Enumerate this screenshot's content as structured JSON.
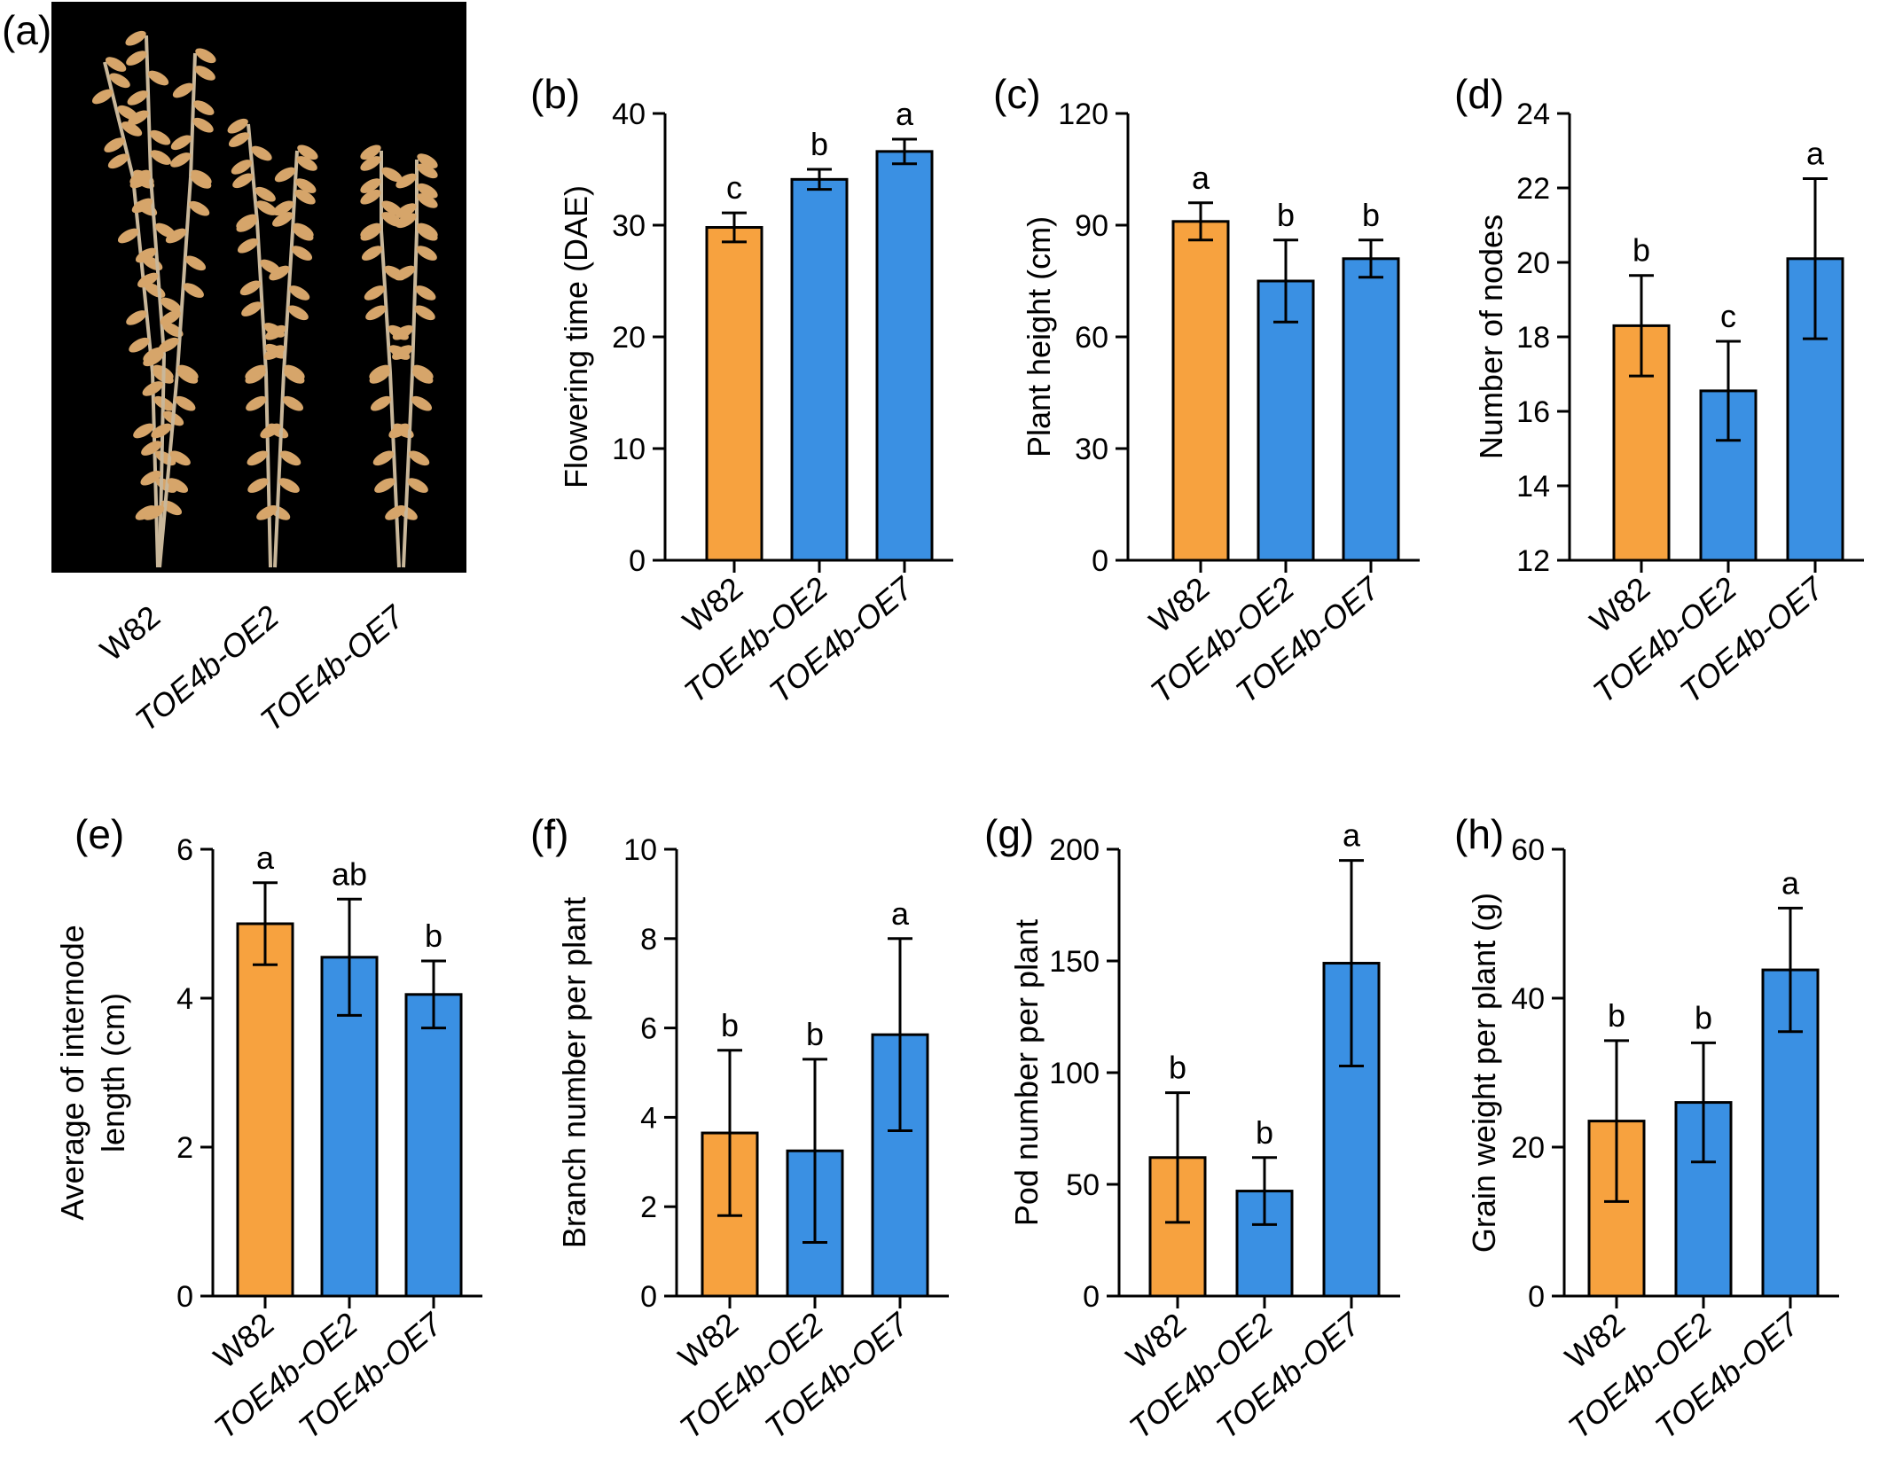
{
  "photo_panel": {
    "letter": "(a)",
    "labels": [
      "W82",
      "TOE4b-OE2",
      "TOE4b-OE7"
    ]
  },
  "colors": {
    "w82": "#f7a23f",
    "oe": "#3a90e3",
    "photo_bg": "#000000",
    "pod": "#d6a56a"
  },
  "chart_data": [
    {
      "panel": "(b)",
      "type": "bar",
      "categories": [
        "W82",
        "TOE4b-OE2",
        "TOE4b-OE7"
      ],
      "values": [
        29.8,
        34.1,
        36.6
      ],
      "errors": [
        1.3,
        0.9,
        1.1
      ],
      "significance": [
        "c",
        "b",
        "a"
      ],
      "ylabel": "Flowering time (DAE)",
      "ylim": [
        0,
        40
      ],
      "yticks": [
        0,
        10,
        20,
        30,
        40
      ]
    },
    {
      "panel": "(c)",
      "type": "bar",
      "categories": [
        "W82",
        "TOE4b-OE2",
        "TOE4b-OE7"
      ],
      "values": [
        91,
        75,
        81
      ],
      "errors": [
        5,
        11,
        5
      ],
      "significance": [
        "a",
        "b",
        "b"
      ],
      "ylabel": "Plant height (cm)",
      "ylim": [
        0,
        120
      ],
      "yticks": [
        0,
        30,
        60,
        90,
        120
      ]
    },
    {
      "panel": "(d)",
      "type": "bar",
      "categories": [
        "W82",
        "TOE4b-OE2",
        "TOE4b-OE7"
      ],
      "values": [
        18.3,
        16.55,
        20.1
      ],
      "errors": [
        1.35,
        1.33,
        2.15
      ],
      "significance": [
        "b",
        "c",
        "a"
      ],
      "ylabel": "Number of nodes",
      "ylim": [
        12,
        24
      ],
      "yticks": [
        12,
        14,
        16,
        18,
        20,
        22,
        24
      ]
    },
    {
      "panel": "(e)",
      "type": "bar",
      "categories": [
        "W82",
        "TOE4b-OE2",
        "TOE4b-OE7"
      ],
      "values": [
        5.0,
        4.55,
        4.05
      ],
      "errors": [
        0.55,
        0.78,
        0.45
      ],
      "significance": [
        "a",
        "ab",
        "b"
      ],
      "ylabel": [
        "Average of internode",
        "length (cm)"
      ],
      "ylim": [
        0,
        6
      ],
      "yticks": [
        0,
        2,
        4,
        6
      ]
    },
    {
      "panel": "(f)",
      "type": "bar",
      "categories": [
        "W82",
        "TOE4b-OE2",
        "TOE4b-OE7"
      ],
      "values": [
        3.65,
        3.25,
        5.85
      ],
      "errors": [
        1.85,
        2.05,
        2.15
      ],
      "significance": [
        "b",
        "b",
        "a"
      ],
      "ylabel": "Branch number per plant",
      "ylim": [
        0,
        10
      ],
      "yticks": [
        0,
        2,
        4,
        6,
        8,
        10
      ]
    },
    {
      "panel": "(g)",
      "type": "bar",
      "categories": [
        "W82",
        "TOE4b-OE2",
        "TOE4b-OE7"
      ],
      "values": [
        62,
        47,
        149
      ],
      "errors": [
        29,
        15,
        46
      ],
      "significance": [
        "b",
        "b",
        "a"
      ],
      "ylabel": "Pod number per plant",
      "ylim": [
        0,
        200
      ],
      "yticks": [
        0,
        50,
        100,
        150,
        200
      ]
    },
    {
      "panel": "(h)",
      "type": "bar",
      "categories": [
        "W82",
        "TOE4b-OE2",
        "TOE4b-OE7"
      ],
      "values": [
        23.5,
        26.0,
        43.8
      ],
      "errors": [
        10.8,
        8.0,
        8.3
      ],
      "significance": [
        "b",
        "b",
        "a"
      ],
      "ylabel": "Grain weight per plant (g)",
      "ylim": [
        0,
        60
      ],
      "yticks": [
        0,
        20,
        40,
        60
      ]
    }
  ]
}
